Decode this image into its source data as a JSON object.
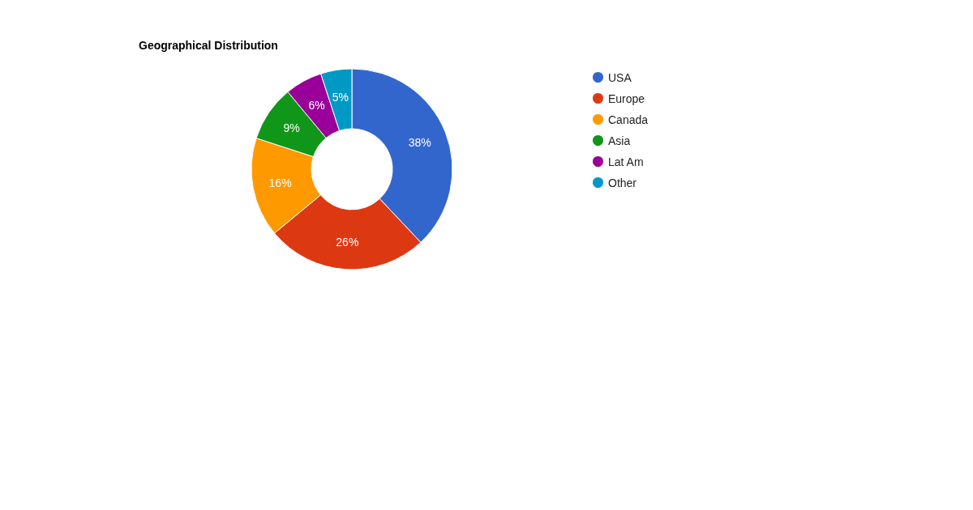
{
  "chart_data": {
    "type": "donut",
    "title": "Geographical Distribution",
    "categories": [
      "USA",
      "Europe",
      "Canada",
      "Asia",
      "Lat Am",
      "Other"
    ],
    "values": [
      38,
      26,
      16,
      9,
      6,
      5
    ],
    "value_labels": [
      "38%",
      "26%",
      "16%",
      "9%",
      "6%",
      "5%"
    ],
    "colors": [
      "#3366cc",
      "#dc3912",
      "#ff9900",
      "#109618",
      "#990099",
      "#0099c6"
    ],
    "legend": "right"
  }
}
